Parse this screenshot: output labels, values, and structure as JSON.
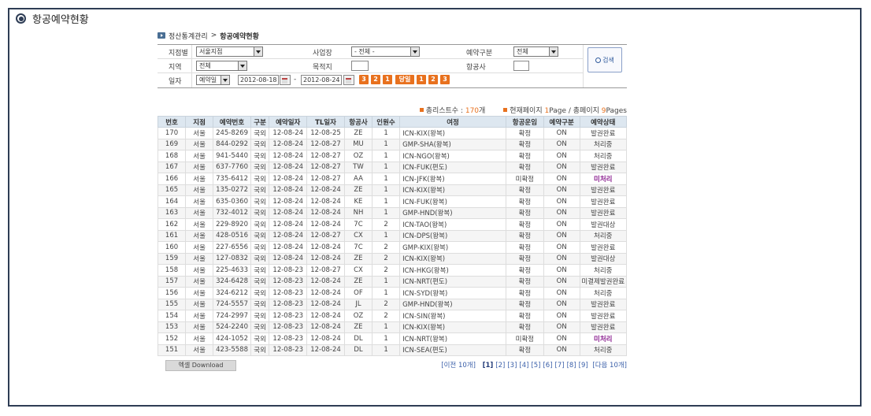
{
  "page_title": "항공예약현황",
  "breadcrumb": {
    "parent": "정산통계관리",
    "sep": ">",
    "current": "항공예약현황"
  },
  "search": {
    "branch_label": "지점별",
    "branch_value": "서울지점",
    "business_label": "사업장",
    "business_value": "- 전체 -",
    "resv_type_label": "예약구분",
    "resv_type_value": "전체",
    "region_label": "지역",
    "region_value": "전체",
    "dest_label": "목적지",
    "dest_value": "",
    "airline_label": "항공사",
    "airline_value": "",
    "date_label": "일자",
    "date_type_value": "예약일",
    "date_from": "2012-08-18",
    "date_sep": "-",
    "date_to": "2012-08-24",
    "quick_buttons": [
      "3",
      "2",
      "1",
      "당일",
      "1",
      "2",
      "3"
    ],
    "search_button": "검색"
  },
  "summary": {
    "total_label": "총리스트수 :",
    "total_count": "170",
    "total_unit": "개",
    "page_label": "현재페이지",
    "page_current": "1",
    "page_mid": "Page / 총페이지",
    "page_total": "9",
    "page_unit": "Pages"
  },
  "table": {
    "headers": [
      "번호",
      "지점",
      "예약번호",
      "구분",
      "예약일자",
      "TL일자",
      "항공사",
      "인원수",
      "여정",
      "항공운임",
      "예약구분",
      "예약상태"
    ],
    "rows": [
      [
        "170",
        "서울",
        "245-8269",
        "국외",
        "12-08-24",
        "12-08-25",
        "ZE",
        "1",
        "ICN-KIX(왕복)",
        "확정",
        "ON",
        "발권완료"
      ],
      [
        "169",
        "서울",
        "844-0292",
        "국외",
        "12-08-24",
        "12-08-27",
        "MU",
        "1",
        "GMP-SHA(왕복)",
        "확정",
        "ON",
        "처리중"
      ],
      [
        "168",
        "서울",
        "941-5440",
        "국외",
        "12-08-24",
        "12-08-27",
        "OZ",
        "1",
        "ICN-NGO(왕복)",
        "확정",
        "ON",
        "처리중"
      ],
      [
        "167",
        "서울",
        "637-7760",
        "국외",
        "12-08-24",
        "12-08-27",
        "TW",
        "1",
        "ICN-FUK(편도)",
        "확정",
        "ON",
        "발권완료"
      ],
      [
        "166",
        "서울",
        "735-6412",
        "국외",
        "12-08-24",
        "12-08-27",
        "AA",
        "1",
        "ICN-JFK(왕복)",
        "미확정",
        "ON",
        "미처리"
      ],
      [
        "165",
        "서울",
        "135-0272",
        "국외",
        "12-08-24",
        "12-08-24",
        "ZE",
        "1",
        "ICN-KIX(왕복)",
        "확정",
        "ON",
        "발권완료"
      ],
      [
        "164",
        "서울",
        "635-0360",
        "국외",
        "12-08-24",
        "12-08-24",
        "KE",
        "1",
        "ICN-FUK(왕복)",
        "확정",
        "ON",
        "발권완료"
      ],
      [
        "163",
        "서울",
        "732-4012",
        "국외",
        "12-08-24",
        "12-08-24",
        "NH",
        "1",
        "GMP-HND(왕복)",
        "확정",
        "ON",
        "발권완료"
      ],
      [
        "162",
        "서울",
        "229-8920",
        "국외",
        "12-08-24",
        "12-08-24",
        "7C",
        "2",
        "ICN-TAO(왕복)",
        "확정",
        "ON",
        "발권대상"
      ],
      [
        "161",
        "서울",
        "428-0516",
        "국외",
        "12-08-24",
        "12-08-27",
        "CX",
        "1",
        "ICN-DPS(왕복)",
        "확정",
        "ON",
        "처리중"
      ],
      [
        "160",
        "서울",
        "227-6556",
        "국외",
        "12-08-24",
        "12-08-24",
        "7C",
        "2",
        "GMP-KIX(왕복)",
        "확정",
        "ON",
        "발권완료"
      ],
      [
        "159",
        "서울",
        "127-0832",
        "국외",
        "12-08-24",
        "12-08-24",
        "ZE",
        "2",
        "ICN-KIX(왕복)",
        "확정",
        "ON",
        "발권대상"
      ],
      [
        "158",
        "서울",
        "225-4633",
        "국외",
        "12-08-23",
        "12-08-27",
        "CX",
        "2",
        "ICN-HKG(왕복)",
        "확정",
        "ON",
        "처리중"
      ],
      [
        "157",
        "서울",
        "324-6428",
        "국외",
        "12-08-23",
        "12-08-24",
        "ZE",
        "1",
        "ICN-NRT(편도)",
        "확정",
        "ON",
        "미결제발권완료"
      ],
      [
        "156",
        "서울",
        "324-6212",
        "국외",
        "12-08-23",
        "12-08-24",
        "OF",
        "1",
        "ICN-SYD(왕복)",
        "확정",
        "ON",
        "처리중"
      ],
      [
        "155",
        "서울",
        "724-5557",
        "국외",
        "12-08-23",
        "12-08-24",
        "JL",
        "2",
        "GMP-HND(왕복)",
        "확정",
        "ON",
        "발권완료"
      ],
      [
        "154",
        "서울",
        "724-2997",
        "국외",
        "12-08-23",
        "12-08-24",
        "OZ",
        "2",
        "ICN-SIN(왕복)",
        "확정",
        "ON",
        "발권완료"
      ],
      [
        "153",
        "서울",
        "524-2240",
        "국외",
        "12-08-23",
        "12-08-24",
        "ZE",
        "1",
        "ICN-KIX(왕복)",
        "확정",
        "ON",
        "발권완료"
      ],
      [
        "152",
        "서울",
        "424-1052",
        "국외",
        "12-08-23",
        "12-08-24",
        "DL",
        "1",
        "ICN-NRT(왕복)",
        "미확정",
        "ON",
        "미처리"
      ],
      [
        "151",
        "서울",
        "423-5588",
        "국외",
        "12-08-23",
        "12-08-24",
        "DL",
        "1",
        "ICN-SEA(편도)",
        "확정",
        "ON",
        "처리중"
      ]
    ]
  },
  "excel_button": "엑셀 Download",
  "pager": {
    "prev": "[이전 10개]",
    "pages": [
      "[1]",
      "[2]",
      "[3]",
      "[4]",
      "[5]",
      "[6]",
      "[7]",
      "[8]",
      "[9]"
    ],
    "next": "[다음 10개]"
  },
  "colors": {
    "frame": "#2e3d55",
    "accent": "#e8711e",
    "header_bg": "#dde7f0",
    "unprocessed": "#8a1e8f",
    "link": "#3a5fa9"
  }
}
